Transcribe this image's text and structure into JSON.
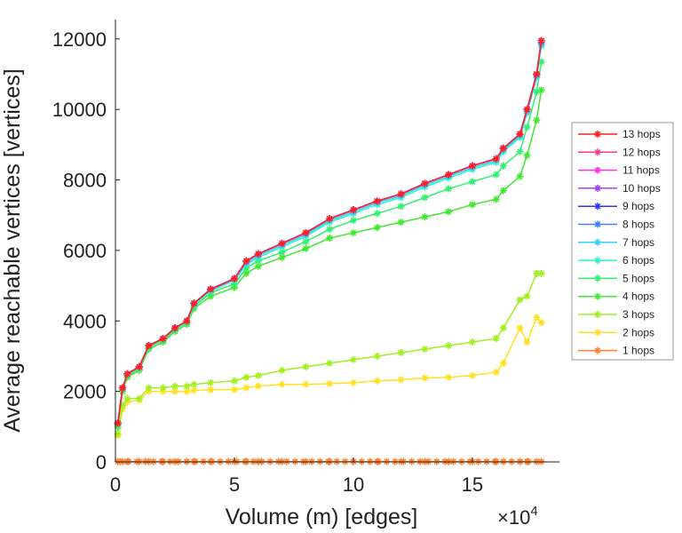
{
  "chart_data": {
    "type": "line",
    "title": "",
    "xlabel": "Volume (m) [edges]",
    "ylabel": "Average reachable vertices [vertices]",
    "x_multiplier": "×10",
    "x_multiplier_exp": "4",
    "xlim": [
      0,
      18.66
    ],
    "ylim": [
      0,
      12550
    ],
    "xticks": [
      "0",
      "5",
      "10",
      "15"
    ],
    "yticks": [
      "0",
      "2000",
      "4000",
      "6000",
      "8000",
      "10000",
      "12000"
    ],
    "legend_position": "right",
    "x": [
      0.1,
      0.3,
      0.5,
      1,
      1.4,
      2,
      2.5,
      3,
      3.3,
      4,
      5,
      5.5,
      6,
      7,
      8,
      9,
      10,
      11,
      12,
      13,
      14,
      15,
      16,
      16.3,
      17,
      17.3,
      17.7,
      17.9
    ],
    "series": [
      {
        "name": "13 hops",
        "color": "#ff2020",
        "values": [
          1100,
          2100,
          2500,
          2700,
          3300,
          3500,
          3800,
          4000,
          4500,
          4900,
          5200,
          5700,
          5900,
          6200,
          6500,
          6900,
          7150,
          7400,
          7600,
          7900,
          8150,
          8400,
          8600,
          8900,
          9300,
          10000,
          11000,
          11950
        ]
      },
      {
        "name": "12 hops",
        "color": "#ff3c8c",
        "values": [
          1100,
          2100,
          2500,
          2700,
          3300,
          3500,
          3800,
          4000,
          4500,
          4900,
          5200,
          5700,
          5900,
          6200,
          6500,
          6900,
          7150,
          7400,
          7600,
          7900,
          8150,
          8400,
          8600,
          8900,
          9300,
          10000,
          11000,
          11950
        ]
      },
      {
        "name": "11 hops",
        "color": "#ff30e0",
        "values": [
          1100,
          2100,
          2500,
          2700,
          3300,
          3500,
          3800,
          4000,
          4500,
          4900,
          5200,
          5700,
          5900,
          6200,
          6500,
          6900,
          7150,
          7400,
          7600,
          7900,
          8150,
          8400,
          8600,
          8900,
          9300,
          10000,
          11000,
          11950
        ]
      },
      {
        "name": "10 hops",
        "color": "#a040ff",
        "values": [
          1100,
          2100,
          2500,
          2700,
          3300,
          3500,
          3800,
          4000,
          4500,
          4900,
          5200,
          5700,
          5900,
          6200,
          6500,
          6900,
          7150,
          7400,
          7600,
          7900,
          8150,
          8400,
          8600,
          8900,
          9300,
          10000,
          11000,
          11950
        ]
      },
      {
        "name": "9 hops",
        "color": "#3030ff",
        "values": [
          1100,
          2100,
          2500,
          2700,
          3300,
          3500,
          3800,
          4000,
          4500,
          4900,
          5200,
          5700,
          5900,
          6200,
          6500,
          6900,
          7150,
          7400,
          7600,
          7900,
          8150,
          8400,
          8600,
          8900,
          9300,
          10000,
          11000,
          11950
        ]
      },
      {
        "name": "8 hops",
        "color": "#4080ff",
        "values": [
          1100,
          2100,
          2500,
          2700,
          3300,
          3500,
          3800,
          4000,
          4500,
          4900,
          5200,
          5700,
          5900,
          6200,
          6500,
          6900,
          7150,
          7400,
          7600,
          7900,
          8150,
          8400,
          8600,
          8900,
          9300,
          10000,
          11000,
          11900
        ]
      },
      {
        "name": "7 hops",
        "color": "#30d0ff",
        "values": [
          1100,
          2100,
          2500,
          2700,
          3300,
          3500,
          3800,
          4000,
          4480,
          4880,
          5180,
          5650,
          5850,
          6150,
          6450,
          6850,
          7100,
          7350,
          7550,
          7850,
          8100,
          8350,
          8550,
          8850,
          9250,
          9950,
          10950,
          11850
        ]
      },
      {
        "name": "6 hops",
        "color": "#30f0d0",
        "values": [
          1100,
          2100,
          2480,
          2680,
          3280,
          3480,
          3780,
          3980,
          4450,
          4850,
          5150,
          5600,
          5800,
          6100,
          6400,
          6800,
          7050,
          7300,
          7500,
          7800,
          8050,
          8300,
          8500,
          8800,
          9200,
          9900,
          10900,
          11800
        ]
      },
      {
        "name": "5 hops",
        "color": "#30f070",
        "values": [
          1050,
          2050,
          2450,
          2650,
          3250,
          3450,
          3750,
          3950,
          4400,
          4800,
          5050,
          5500,
          5700,
          5950,
          6250,
          6600,
          6850,
          7050,
          7250,
          7500,
          7750,
          7950,
          8150,
          8400,
          8800,
          9500,
          10500,
          11350
        ]
      },
      {
        "name": "4 hops",
        "color": "#40e830",
        "values": [
          1000,
          2000,
          2400,
          2600,
          3200,
          3400,
          3700,
          3900,
          4350,
          4700,
          4950,
          5350,
          5550,
          5800,
          6050,
          6350,
          6500,
          6650,
          6800,
          6950,
          7100,
          7300,
          7450,
          7700,
          8100,
          8700,
          9700,
          10550
        ]
      },
      {
        "name": "3 hops",
        "color": "#a0f020",
        "values": [
          800,
          1600,
          1800,
          1800,
          2100,
          2100,
          2150,
          2150,
          2200,
          2250,
          2300,
          2400,
          2450,
          2600,
          2700,
          2800,
          2900,
          3000,
          3100,
          3200,
          3300,
          3400,
          3500,
          3800,
          4600,
          4700,
          5350,
          5350
        ]
      },
      {
        "name": "2 hops",
        "color": "#ffe020",
        "values": [
          750,
          1500,
          1700,
          1750,
          2000,
          2000,
          2000,
          2000,
          2030,
          2050,
          2050,
          2100,
          2150,
          2200,
          2200,
          2220,
          2250,
          2300,
          2330,
          2380,
          2400,
          2450,
          2550,
          2800,
          3800,
          3400,
          4100,
          3950
        ]
      },
      {
        "name": "1 hops",
        "color": "#ff8030",
        "values": [
          10,
          10,
          10,
          10,
          10,
          10,
          10,
          10,
          10,
          10,
          10,
          10,
          10,
          10,
          10,
          10,
          10,
          10,
          10,
          10,
          10,
          10,
          10,
          10,
          10,
          10,
          10,
          10
        ]
      }
    ]
  }
}
